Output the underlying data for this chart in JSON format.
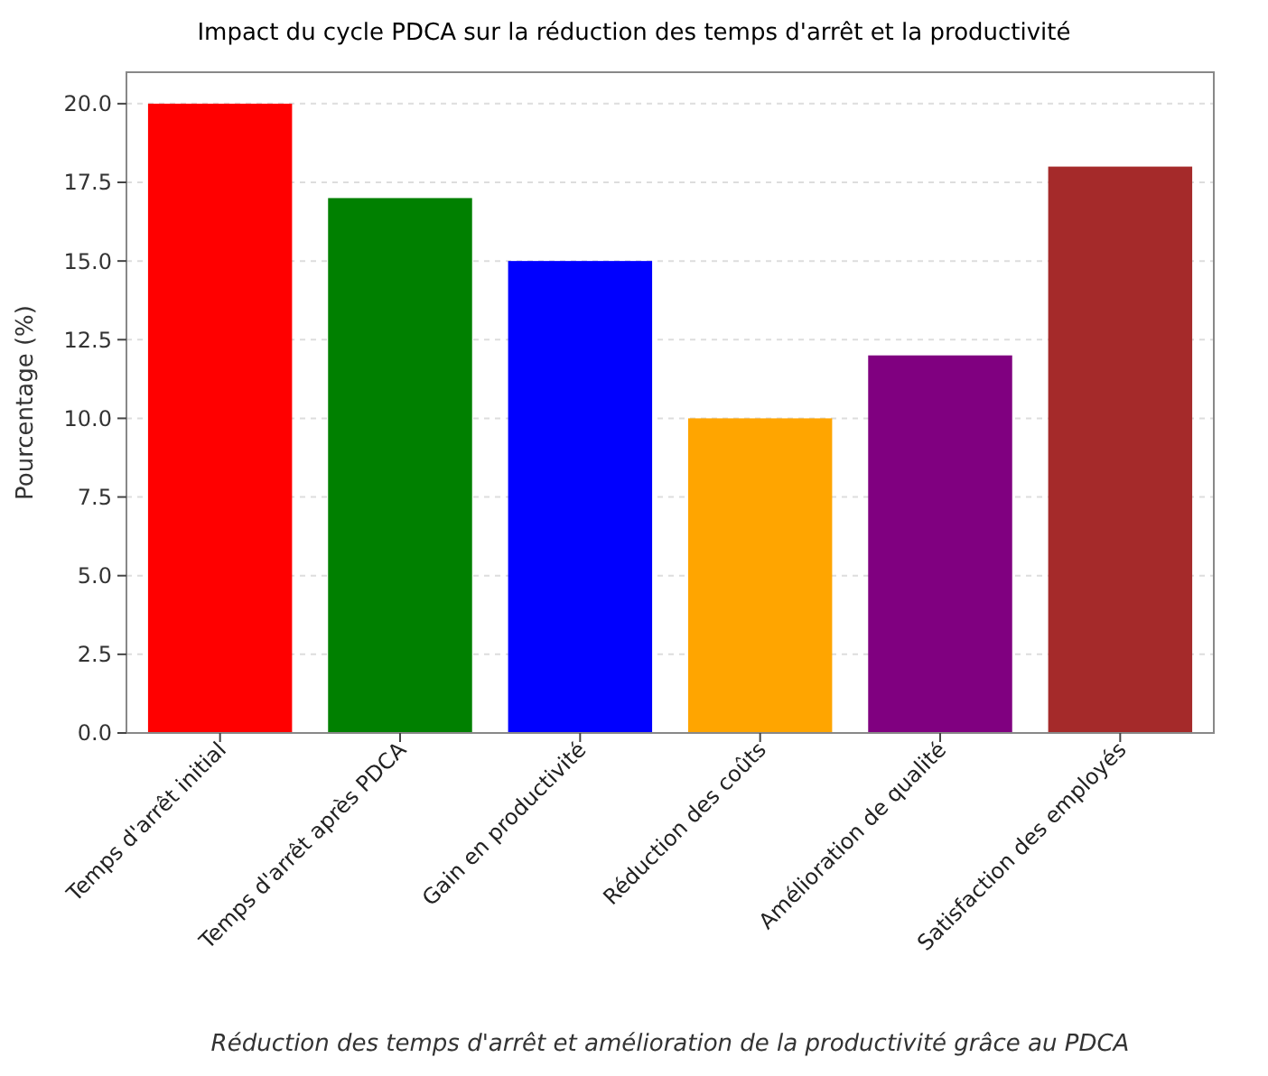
{
  "chart_data": {
    "type": "bar",
    "title": "Impact du cycle PDCA sur la réduction des temps d'arrêt et la productivité",
    "xlabel": "Réduction des temps d'arrêt et amélioration de la productivité grâce au PDCA",
    "ylabel": "Pourcentage (%)",
    "categories": [
      "Temps d'arrêt initial",
      "Temps d'arrêt après PDCA",
      "Gain en productivité",
      "Réduction des coûts",
      "Amélioration de qualité",
      "Satisfaction des employés"
    ],
    "values": [
      20,
      17,
      15,
      10,
      12,
      18
    ],
    "colors": [
      "#ff0000",
      "#008000",
      "#0000ff",
      "#ffa500",
      "#800080",
      "#a52a2a"
    ],
    "ylim": [
      0,
      21
    ],
    "yticks": [
      {
        "value": 0,
        "label": "0.0"
      },
      {
        "value": 2.5,
        "label": "2.5"
      },
      {
        "value": 5,
        "label": "5.0"
      },
      {
        "value": 7.5,
        "label": "7.5"
      },
      {
        "value": 10,
        "label": "10.0"
      },
      {
        "value": 12.5,
        "label": "12.5"
      },
      {
        "value": 15,
        "label": "15.0"
      },
      {
        "value": 17.5,
        "label": "17.5"
      },
      {
        "value": 20,
        "label": "20.0"
      }
    ],
    "grid": "y"
  }
}
